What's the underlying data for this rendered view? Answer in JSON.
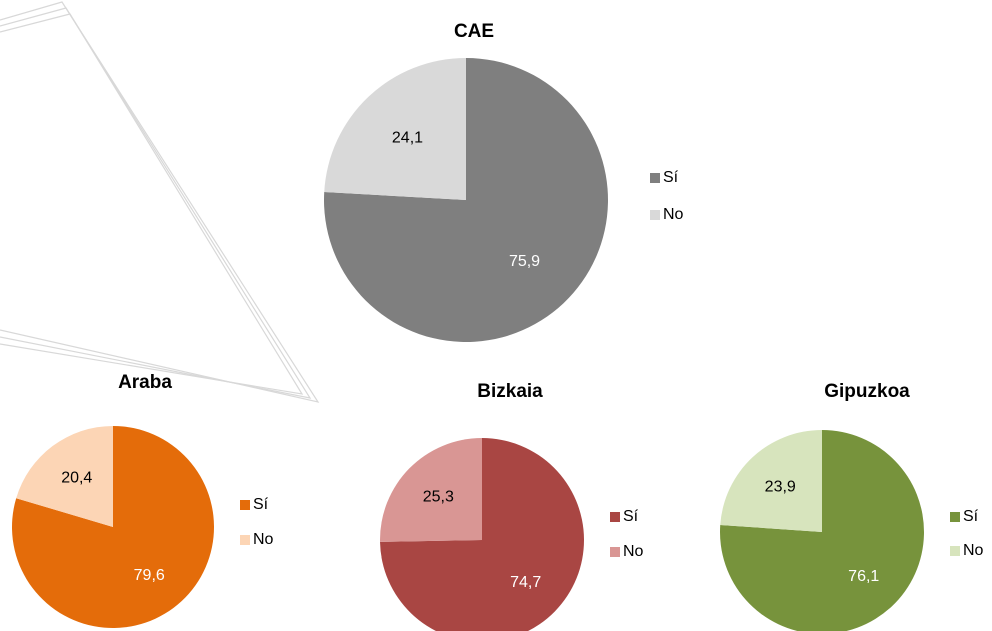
{
  "chart_data": [
    {
      "type": "pie",
      "title": "CAE",
      "categories": [
        "Sí",
        "No"
      ],
      "values": [
        75.9,
        24.1
      ],
      "value_labels": [
        "75,9",
        "24,1"
      ],
      "colors": [
        "#7f7f7f",
        "#d9d9d9"
      ]
    },
    {
      "type": "pie",
      "title": "Araba",
      "categories": [
        "Sí",
        "No"
      ],
      "values": [
        79.6,
        20.4
      ],
      "value_labels": [
        "79,6",
        "20,4"
      ],
      "colors": [
        "#e46c0a",
        "#fcd5b5"
      ]
    },
    {
      "type": "pie",
      "title": "Bizkaia",
      "categories": [
        "Sí",
        "No"
      ],
      "values": [
        74.7,
        25.3
      ],
      "value_labels": [
        "74,7",
        "25,3"
      ],
      "colors": [
        "#a94643",
        "#d99694"
      ]
    },
    {
      "type": "pie",
      "title": "Gipuzkoa",
      "categories": [
        "Sí",
        "No"
      ],
      "values": [
        76.1,
        23.9
      ],
      "value_labels": [
        "76,1",
        "23,9"
      ],
      "colors": [
        "#77933c",
        "#d7e4bd"
      ]
    }
  ]
}
